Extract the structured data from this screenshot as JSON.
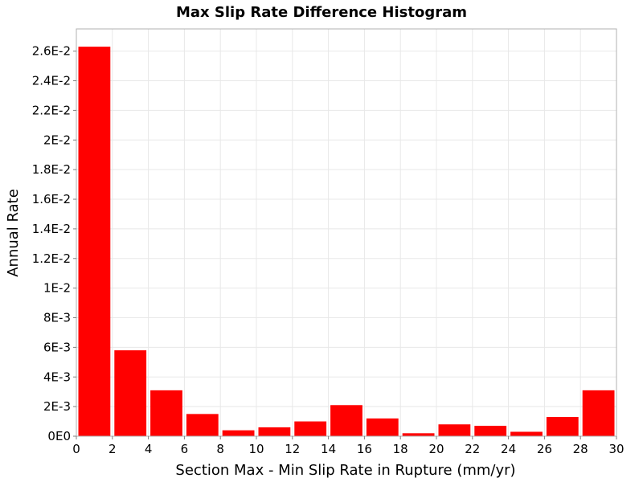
{
  "chart_data": {
    "type": "bar",
    "title": "Max Slip Rate Difference Histogram",
    "xlabel": "Section Max - Min Slip Rate in Rupture (mm/yr)",
    "ylabel": "Annual Rate",
    "xlim": [
      0,
      30
    ],
    "ylim": [
      0,
      0.0275
    ],
    "x_ticks": [
      0,
      2,
      4,
      6,
      8,
      10,
      12,
      14,
      16,
      18,
      20,
      22,
      24,
      26,
      28,
      30
    ],
    "x_tick_labels": [
      "0",
      "2",
      "4",
      "6",
      "8",
      "10",
      "12",
      "14",
      "16",
      "18",
      "20",
      "22",
      "24",
      "26",
      "28",
      "30"
    ],
    "y_ticks": [
      0,
      0.002,
      0.004,
      0.006,
      0.008,
      0.01,
      0.012,
      0.014,
      0.016,
      0.018,
      0.02,
      0.022,
      0.024,
      0.026
    ],
    "y_tick_labels": [
      "0E0",
      "2E-3",
      "4E-3",
      "6E-3",
      "8E-3",
      "1E-2",
      "1.2E-2",
      "1.4E-2",
      "1.6E-2",
      "1.8E-2",
      "2E-2",
      "2.2E-2",
      "2.4E-2",
      "2.6E-2"
    ],
    "bin_width": 2,
    "bins": [
      {
        "x0": 0,
        "x1": 2,
        "value": 0.0263
      },
      {
        "x0": 2,
        "x1": 4,
        "value": 0.0058
      },
      {
        "x0": 4,
        "x1": 6,
        "value": 0.0031
      },
      {
        "x0": 6,
        "x1": 8,
        "value": 0.0015
      },
      {
        "x0": 8,
        "x1": 10,
        "value": 0.0004
      },
      {
        "x0": 10,
        "x1": 12,
        "value": 0.0006
      },
      {
        "x0": 12,
        "x1": 14,
        "value": 0.001
      },
      {
        "x0": 14,
        "x1": 16,
        "value": 0.0021
      },
      {
        "x0": 16,
        "x1": 18,
        "value": 0.0012
      },
      {
        "x0": 18,
        "x1": 20,
        "value": 0.0002
      },
      {
        "x0": 20,
        "x1": 22,
        "value": 0.0008
      },
      {
        "x0": 22,
        "x1": 24,
        "value": 0.0007
      },
      {
        "x0": 24,
        "x1": 26,
        "value": 0.0003
      },
      {
        "x0": 26,
        "x1": 28,
        "value": 0.0013
      },
      {
        "x0": 28,
        "x1": 30,
        "value": 0.0031
      }
    ],
    "bar_color": "#ff0000",
    "grid": true,
    "grid_color": "#e8e8e8",
    "plot_border_color": "#b0b0b0"
  }
}
